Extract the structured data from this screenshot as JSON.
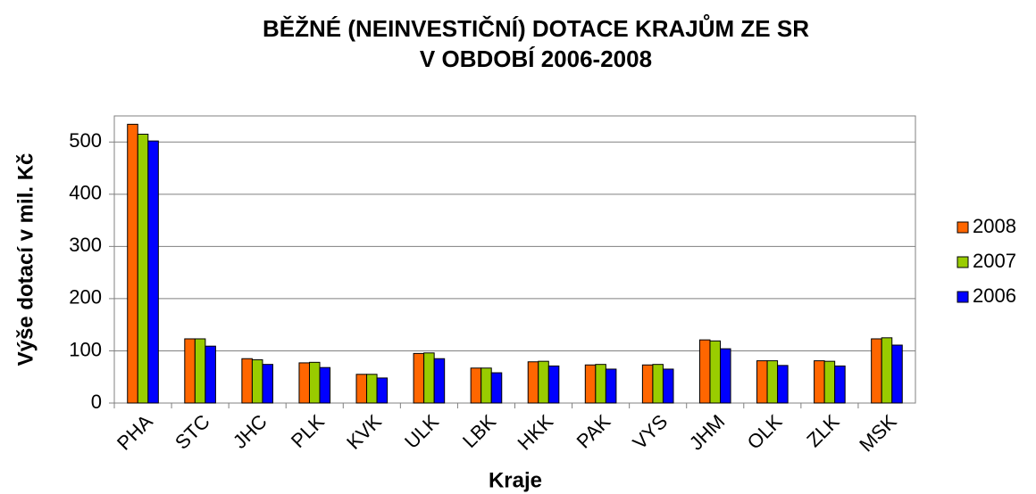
{
  "chart_data": {
    "type": "bar",
    "title": [
      "BĚŽNÉ (NEINVESTIČNÍ) DOTACE KRAJŮM ZE SR",
      "V OBDOBÍ 2006-2008"
    ],
    "y_label": "Výše dotací v mil. Kč",
    "x_label": "Kraje",
    "categories": [
      "PHA",
      "STC",
      "JHC",
      "PLK",
      "KVK",
      "ULK",
      "LBK",
      "HKK",
      "PAK",
      "VYS",
      "JHM",
      "OLK",
      "ZLK",
      "MSK"
    ],
    "series": [
      {
        "name": "2008",
        "color": "#ff6600",
        "values": [
          534,
          123,
          85,
          77,
          55,
          95,
          67,
          79,
          73,
          73,
          121,
          81,
          81,
          123
        ]
      },
      {
        "name": "2007",
        "color": "#99cc00",
        "values": [
          515,
          123,
          83,
          78,
          55,
          96,
          67,
          80,
          74,
          74,
          119,
          81,
          80,
          125
        ]
      },
      {
        "name": "2006",
        "color": "#0000ff",
        "values": [
          502,
          109,
          74,
          68,
          48,
          85,
          58,
          71,
          65,
          65,
          104,
          72,
          71,
          111
        ]
      }
    ],
    "ylim": [
      0,
      550
    ],
    "yticks": [
      0,
      100,
      200,
      300,
      400,
      500
    ],
    "grid": true,
    "legend": "right"
  }
}
